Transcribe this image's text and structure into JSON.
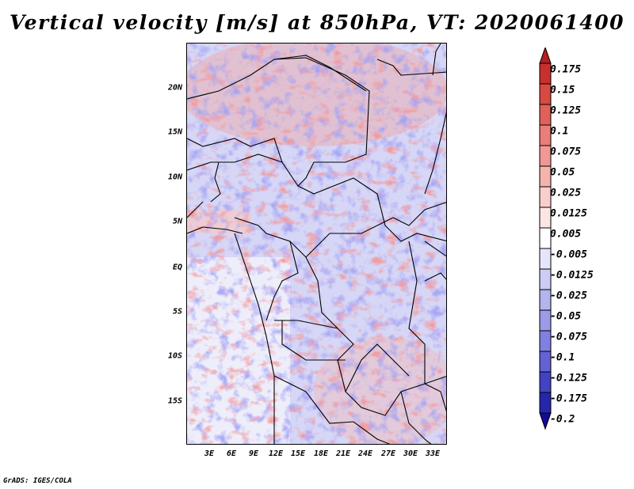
{
  "title": "Vertical velocity [m/s] at 850hPa, VT: 2020061400",
  "credit": "GrADS: IGES/COLA",
  "map": {
    "lon_range": [
      0,
      35
    ],
    "lat_range": [
      -20,
      25
    ],
    "lat_ticks": [
      {
        "value": 20,
        "label": "20N"
      },
      {
        "value": 15,
        "label": "15N"
      },
      {
        "value": 10,
        "label": "10N"
      },
      {
        "value": 5,
        "label": "5N"
      },
      {
        "value": 0,
        "label": "EQ"
      },
      {
        "value": -5,
        "label": "5S"
      },
      {
        "value": -10,
        "label": "10S"
      },
      {
        "value": -15,
        "label": "15S"
      }
    ],
    "lon_ticks": [
      {
        "value": 3,
        "label": "3E"
      },
      {
        "value": 6,
        "label": "6E"
      },
      {
        "value": 9,
        "label": "9E"
      },
      {
        "value": 12,
        "label": "12E"
      },
      {
        "value": 15,
        "label": "15E"
      },
      {
        "value": 18,
        "label": "18E"
      },
      {
        "value": 21,
        "label": "21E"
      },
      {
        "value": 24,
        "label": "24E"
      },
      {
        "value": 27,
        "label": "27E"
      },
      {
        "value": 30,
        "label": "30E"
      },
      {
        "value": 33,
        "label": "33E"
      }
    ]
  },
  "colorbar": {
    "labels": [
      "0.175",
      "0.15",
      "0.125",
      "0.1",
      "0.075",
      "0.05",
      "0.025",
      "0.0125",
      "0.005",
      "-0.005",
      "-0.0125",
      "-0.025",
      "-0.05",
      "-0.075",
      "-0.1",
      "-0.125",
      "-0.175",
      "-0.2"
    ],
    "colors": [
      "#b41e1e",
      "#c8302d",
      "#d84a41",
      "#e2605a",
      "#ea7e78",
      "#f09893",
      "#f5b3ae",
      "#f9cdca",
      "#fce6e4",
      "#ffffff",
      "#e6e6fa",
      "#ccccf4",
      "#b4b4ee",
      "#9b9be8",
      "#8080e0",
      "#6262d4",
      "#4242c2",
      "#2626ac",
      "#140a96"
    ]
  }
}
